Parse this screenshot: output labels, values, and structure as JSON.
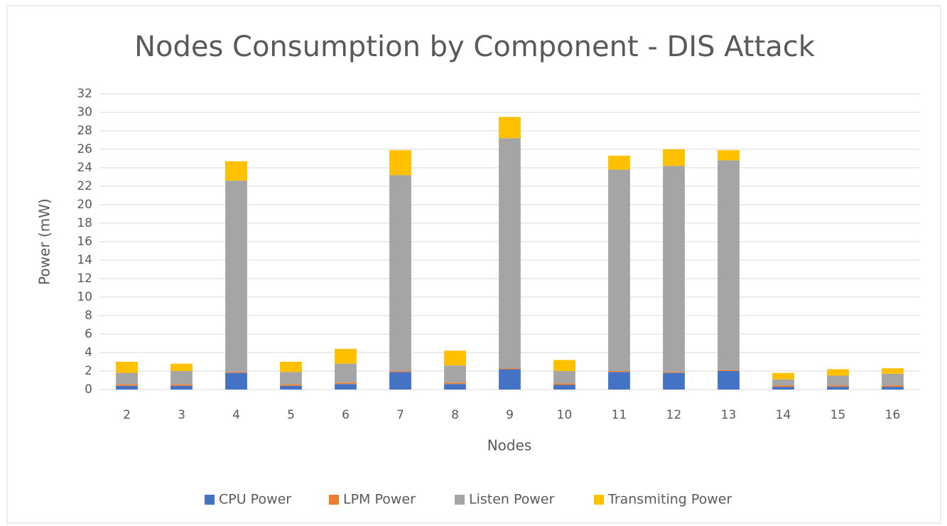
{
  "chart_data": {
    "type": "stacked_bar",
    "title": "Nodes Consumption by Component - DIS Attack",
    "x_label": "Nodes",
    "y_label": "Power (mW)",
    "categories": [
      "2",
      "3",
      "4",
      "5",
      "6",
      "7",
      "8",
      "9",
      "10",
      "11",
      "12",
      "13",
      "14",
      "15",
      "16"
    ],
    "series": [
      {
        "name": "CPU Power",
        "color": "#4472c4",
        "values": [
          0.4,
          0.4,
          1.8,
          0.4,
          0.6,
          1.9,
          0.6,
          2.2,
          0.5,
          1.9,
          1.8,
          2.0,
          0.3,
          0.3,
          0.3
        ]
      },
      {
        "name": "LPM Power",
        "color": "#ed7d31",
        "values": [
          0.15,
          0.15,
          0.1,
          0.15,
          0.15,
          0.1,
          0.15,
          0.1,
          0.15,
          0.1,
          0.1,
          0.1,
          0.15,
          0.15,
          0.15
        ]
      },
      {
        "name": "Listen Power",
        "color": "#a5a5a5",
        "values": [
          1.25,
          1.45,
          20.7,
          1.35,
          2.05,
          21.2,
          1.85,
          24.9,
          1.35,
          21.8,
          22.3,
          22.7,
          0.65,
          1.05,
          1.25
        ]
      },
      {
        "name": "Transmiting Power",
        "color": "#ffc000",
        "values": [
          1.2,
          0.8,
          2.1,
          1.1,
          1.6,
          2.7,
          1.6,
          2.3,
          1.2,
          1.5,
          1.8,
          1.1,
          0.7,
          0.7,
          0.6
        ]
      }
    ],
    "ylim": [
      0,
      32
    ],
    "yticks": [
      0,
      2,
      4,
      6,
      8,
      10,
      12,
      14,
      16,
      18,
      20,
      22,
      24,
      26,
      28,
      30,
      32
    ],
    "grid": true,
    "legend": "bottom"
  }
}
